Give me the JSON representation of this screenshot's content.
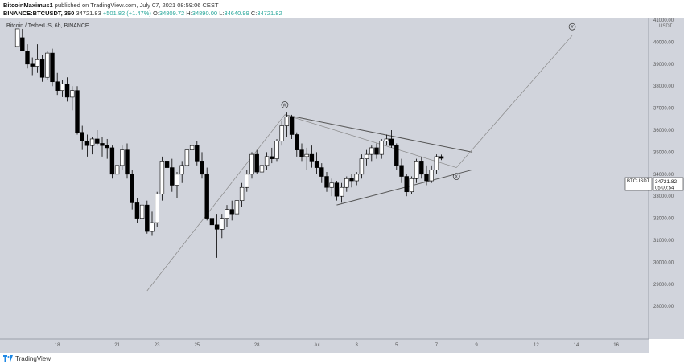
{
  "header": {
    "author": "BitcoinMaximus1",
    "published_text": "published on TradingView.com, July 07, 2021 08:59:06 CEST",
    "symbol_line_prefix": "BINANCE:BTCUSDT, 360",
    "price": "34721.83",
    "change": "+501.82 (+1.47%)",
    "o_label": "O:",
    "o_value": "34809.72",
    "h_label": "H:",
    "h_value": "34890.00",
    "l_label": "L:",
    "l_value": "34640.99",
    "c_label": "C:",
    "c_value": "34721.82"
  },
  "legend_title": "Bitcoin / TetherUS, 6h, BINANCE",
  "footer": {
    "brand": "TradingView"
  },
  "colors": {
    "background": "#d1d4dc",
    "candle_up": "#ffffff",
    "candle_down": "#000000",
    "line": "#555555",
    "wave_line": "#888888"
  },
  "chart_data": {
    "type": "candlestick",
    "symbol": "BTCUSDT",
    "currency_label": "USDT",
    "last_price_label": "34721.82",
    "countdown_label": "05:00:54",
    "y_axis": {
      "min": 28000,
      "max": 41000,
      "ticks": [
        "41000.00",
        "40000.00",
        "39000.00",
        "38000.00",
        "37000.00",
        "36000.00",
        "35000.00",
        "34000.00",
        "33000.00",
        "32000.00",
        "31000.00",
        "30000.00",
        "29000.00",
        "28000.00"
      ]
    },
    "x_axis": {
      "ticks": [
        "18",
        "21",
        "23",
        "25",
        "28",
        "Jul",
        "3",
        "5",
        "7",
        "9",
        "12",
        "14",
        "16"
      ],
      "tick_positions_day": [
        18,
        21,
        23,
        25,
        28,
        31,
        33,
        35,
        37,
        39,
        42,
        44,
        46
      ]
    },
    "candles": [
      [
        16.0,
        39800,
        40600,
        39800,
        40600
      ],
      [
        16.25,
        40200,
        40600,
        39600,
        39600
      ],
      [
        16.5,
        39600,
        39900,
        38800,
        39000
      ],
      [
        16.75,
        39000,
        39300,
        38500,
        38900
      ],
      [
        17.0,
        38900,
        39900,
        38600,
        39200
      ],
      [
        17.25,
        39200,
        39400,
        38200,
        38400
      ],
      [
        17.5,
        38400,
        39600,
        38300,
        39500
      ],
      [
        17.75,
        39500,
        39700,
        38000,
        38200
      ],
      [
        18.0,
        38200,
        38600,
        37600,
        37800
      ],
      [
        18.25,
        37800,
        38300,
        37500,
        38100
      ],
      [
        18.5,
        38100,
        38400,
        37300,
        37500
      ],
      [
        18.75,
        37500,
        38000,
        36900,
        37800
      ],
      [
        19.0,
        37800,
        38000,
        35800,
        35900
      ],
      [
        19.25,
        35900,
        36200,
        35100,
        35500
      ],
      [
        19.5,
        35500,
        35800,
        34800,
        35300
      ],
      [
        19.75,
        35300,
        35700,
        34900,
        35600
      ],
      [
        20.0,
        35600,
        36000,
        35300,
        35400
      ],
      [
        20.25,
        35400,
        35700,
        34800,
        35300
      ],
      [
        20.5,
        35300,
        35600,
        34700,
        35200
      ],
      [
        20.75,
        35200,
        35300,
        33800,
        34000
      ],
      [
        21.0,
        34000,
        34600,
        33200,
        34400
      ],
      [
        21.25,
        34400,
        35300,
        34200,
        35100
      ],
      [
        21.5,
        35100,
        35400,
        33800,
        34000
      ],
      [
        21.75,
        34000,
        34200,
        32400,
        32700
      ],
      [
        22.0,
        32700,
        32900,
        31800,
        32000
      ],
      [
        22.25,
        32000,
        32700,
        31400,
        32600
      ],
      [
        22.5,
        32600,
        32800,
        31300,
        31400
      ],
      [
        22.75,
        31400,
        32300,
        31200,
        31800
      ],
      [
        23.0,
        31800,
        33200,
        31600,
        33100
      ],
      [
        23.25,
        33100,
        34800,
        32800,
        34600
      ],
      [
        23.5,
        34600,
        35000,
        34000,
        34300
      ],
      [
        23.75,
        34300,
        34700,
        33200,
        33500
      ],
      [
        24.0,
        33500,
        34100,
        32900,
        34000
      ],
      [
        24.25,
        34000,
        34600,
        33600,
        34400
      ],
      [
        24.5,
        34400,
        35300,
        34100,
        35100
      ],
      [
        24.75,
        35100,
        35800,
        34800,
        35300
      ],
      [
        25.0,
        35300,
        35500,
        34400,
        34600
      ],
      [
        25.25,
        34600,
        35000,
        33800,
        34000
      ],
      [
        25.5,
        34000,
        34300,
        31900,
        32000
      ],
      [
        25.75,
        32000,
        32400,
        31300,
        31700
      ],
      [
        26.0,
        31700,
        32200,
        30200,
        31500
      ],
      [
        26.25,
        31500,
        32200,
        31100,
        32000
      ],
      [
        26.5,
        32000,
        32600,
        31600,
        32400
      ],
      [
        26.75,
        32400,
        32800,
        31900,
        32200
      ],
      [
        27.0,
        32200,
        33000,
        31900,
        32800
      ],
      [
        27.25,
        32800,
        33600,
        32500,
        33400
      ],
      [
        27.5,
        33400,
        34200,
        33200,
        34000
      ],
      [
        27.75,
        34000,
        35000,
        33800,
        34900
      ],
      [
        28.0,
        34900,
        35100,
        34000,
        34100
      ],
      [
        28.25,
        34100,
        34600,
        33700,
        34400
      ],
      [
        28.5,
        34400,
        35000,
        34200,
        34800
      ],
      [
        28.75,
        34800,
        35200,
        34500,
        34700
      ],
      [
        29.0,
        34700,
        35600,
        34600,
        35500
      ],
      [
        29.25,
        35500,
        36400,
        35300,
        36200
      ],
      [
        29.5,
        36200,
        36800,
        35700,
        36600
      ],
      [
        29.75,
        36600,
        36700,
        35600,
        35800
      ],
      [
        30.0,
        35800,
        35900,
        34800,
        35100
      ],
      [
        30.25,
        35100,
        35400,
        34600,
        34800
      ],
      [
        30.5,
        34800,
        35200,
        34200,
        34900
      ],
      [
        30.75,
        34900,
        35300,
        34300,
        34600
      ],
      [
        31.0,
        34600,
        35000,
        34000,
        34300
      ],
      [
        31.25,
        34300,
        34500,
        33600,
        33900
      ],
      [
        31.5,
        33900,
        34100,
        33200,
        33400
      ],
      [
        31.75,
        33400,
        33800,
        33000,
        33600
      ],
      [
        32.0,
        33600,
        33700,
        32800,
        33000
      ],
      [
        32.25,
        33000,
        33600,
        32700,
        33400
      ],
      [
        32.5,
        33400,
        33900,
        33200,
        33800
      ],
      [
        32.75,
        33800,
        34000,
        33400,
        33700
      ],
      [
        33.0,
        33700,
        34100,
        33500,
        34000
      ],
      [
        33.25,
        34000,
        34900,
        33800,
        34700
      ],
      [
        33.5,
        34700,
        35100,
        34400,
        34900
      ],
      [
        33.75,
        34900,
        35300,
        34600,
        35200
      ],
      [
        34.0,
        35200,
        35400,
        34700,
        34900
      ],
      [
        34.25,
        34900,
        35600,
        34700,
        35500
      ],
      [
        34.5,
        35500,
        35800,
        35300,
        35600
      ],
      [
        34.75,
        35600,
        36000,
        35200,
        35300
      ],
      [
        35.0,
        35300,
        35400,
        34200,
        34400
      ],
      [
        35.25,
        34400,
        34700,
        33600,
        33900
      ],
      [
        35.5,
        33900,
        34000,
        33000,
        33200
      ],
      [
        35.75,
        33200,
        33900,
        33100,
        33800
      ],
      [
        36.0,
        33800,
        34700,
        33600,
        34600
      ],
      [
        36.25,
        34600,
        34800,
        33800,
        34000
      ],
      [
        36.5,
        34000,
        34400,
        33500,
        33700
      ],
      [
        36.75,
        33700,
        34400,
        33600,
        34200
      ],
      [
        37.0,
        34200,
        34900,
        34000,
        34800
      ],
      [
        37.25,
        34800,
        34890,
        34640,
        34721
      ]
    ],
    "trendlines": [
      {
        "from": [
          22.5,
          28700
        ],
        "to": [
          29.4,
          36700
        ]
      },
      {
        "from": [
          29.4,
          36700
        ],
        "to": [
          38.8,
          35000
        ]
      },
      {
        "from": [
          32.0,
          32600
        ],
        "to": [
          38.8,
          34200
        ]
      },
      {
        "from": [
          29.4,
          36700
        ],
        "to": [
          38.0,
          34300
        ]
      },
      {
        "from": [
          38.0,
          34300
        ],
        "to": [
          43.8,
          40300
        ]
      }
    ],
    "annotations": [
      {
        "label": "W",
        "at": [
          29.4,
          37150
        ]
      },
      {
        "label": "X",
        "at": [
          38.0,
          33900
        ]
      },
      {
        "label": "Y",
        "at": [
          43.8,
          40700
        ]
      }
    ]
  }
}
